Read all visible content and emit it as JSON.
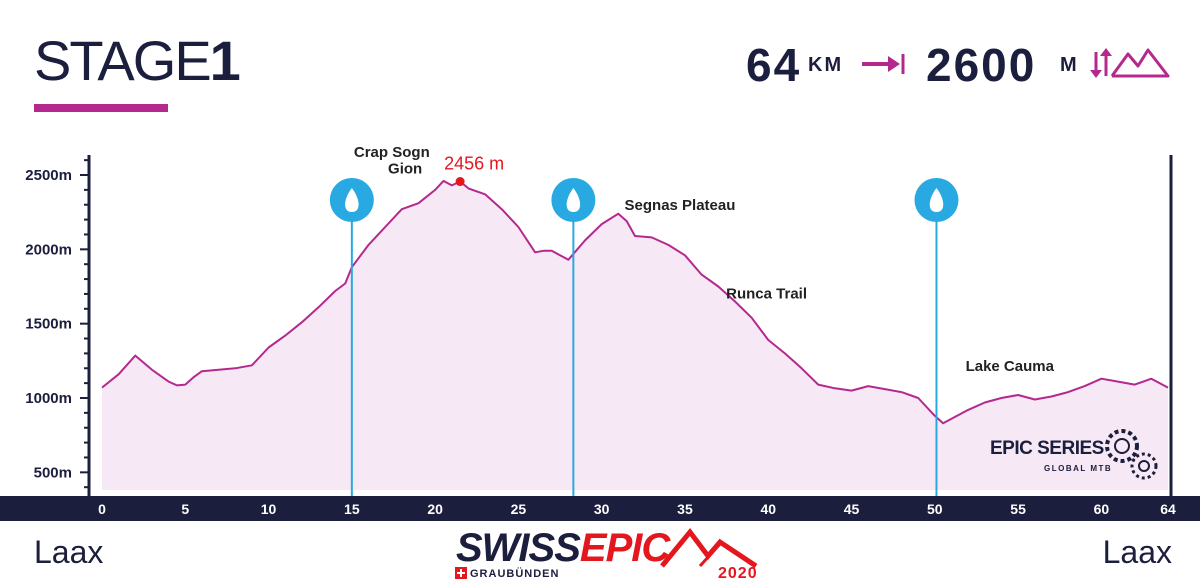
{
  "header": {
    "stage_word": "STAGE",
    "stage_number": "1",
    "distance_value": "64",
    "distance_unit": "KM",
    "distance_icon": "arrow-right-to-bar-icon",
    "elevation_value": "2600",
    "elevation_unit": "M",
    "elevation_icon": "up-down-mountains-icon"
  },
  "footer": {
    "start_place": "Laax",
    "finish_place": "Laax",
    "logo": {
      "swiss": "SWISS",
      "epic": "EPIC",
      "sub": "GRAUBÜNDEN",
      "year": "2020"
    },
    "series_logo": {
      "title": "EPIC SERIES",
      "sub": "GLOBAL MTB"
    }
  },
  "colors": {
    "navy": "#1b1e3d",
    "magenta": "#b5288e",
    "fill": "#f6e8f4",
    "water": "#29a9e1",
    "red": "#e4161e"
  },
  "chart_data": {
    "type": "area",
    "title": "",
    "xlabel": "",
    "ylabel": "",
    "xlim": [
      0,
      64
    ],
    "ylim": [
      350,
      2650
    ],
    "x_ticks": [
      0,
      5,
      10,
      15,
      20,
      25,
      30,
      35,
      40,
      45,
      50,
      55,
      60,
      64
    ],
    "y_ticks": [
      {
        "value": 500,
        "label": "500m"
      },
      {
        "value": 1000,
        "label": "1000m"
      },
      {
        "value": 1500,
        "label": "1500m"
      },
      {
        "value": 2000,
        "label": "2000m"
      },
      {
        "value": 2500,
        "label": "2500m"
      }
    ],
    "series": [
      {
        "x": [
          0,
          1,
          2,
          3,
          4,
          4.5,
          5,
          5.5,
          6,
          7,
          8,
          8.5,
          9,
          10,
          11,
          12,
          13,
          14,
          14.6,
          15,
          16,
          17,
          18,
          19,
          20,
          20.5,
          21,
          21.5,
          22,
          23,
          24,
          25,
          26,
          26.5,
          27,
          28,
          29,
          30,
          31,
          31.5,
          32,
          33,
          34,
          35,
          36,
          37,
          38,
          39,
          40,
          41,
          42,
          43,
          44,
          45,
          46,
          47,
          48,
          49,
          50,
          50.5,
          51,
          52,
          53,
          54,
          55,
          56,
          57,
          58,
          59,
          60,
          61,
          62,
          63,
          64
        ],
        "y": [
          1070,
          1160,
          1285,
          1190,
          1110,
          1085,
          1090,
          1140,
          1180,
          1190,
          1200,
          1210,
          1220,
          1340,
          1420,
          1510,
          1610,
          1720,
          1770,
          1880,
          2030,
          2150,
          2270,
          2310,
          2400,
          2460,
          2430,
          2456,
          2410,
          2370,
          2270,
          2150,
          1980,
          1990,
          1990,
          1930,
          2060,
          2170,
          2240,
          2190,
          2090,
          2080,
          2030,
          1960,
          1830,
          1750,
          1650,
          1540,
          1390,
          1300,
          1200,
          1090,
          1065,
          1050,
          1080,
          1060,
          1040,
          1000,
          880,
          830,
          860,
          920,
          970,
          1000,
          1020,
          990,
          1010,
          1040,
          1080,
          1130,
          1110,
          1090,
          1130,
          1070
        ]
      }
    ],
    "peak": {
      "x": 21.5,
      "y": 2456,
      "label": "2456 m"
    },
    "water_points": [
      15,
      28.3,
      50.1
    ],
    "annotations": [
      {
        "text": "Crap Sogn",
        "x": 17.4,
        "y": 2620
      },
      {
        "text": "Gion",
        "x": 18.2,
        "y": 2510
      },
      {
        "text": "Segnas Plateau",
        "x": 34.7,
        "y": 2265
      },
      {
        "text": "Runca Trail",
        "x": 39.9,
        "y": 1670
      },
      {
        "text": "Lake Cauma",
        "x": 54.5,
        "y": 1180
      }
    ],
    "grid": false
  }
}
